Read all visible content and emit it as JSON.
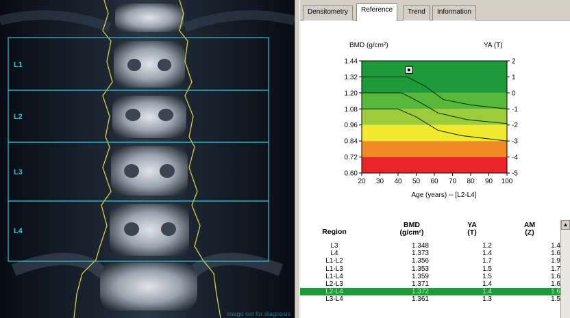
{
  "scan": {
    "regions": [
      "L1",
      "L2",
      "L3",
      "L4"
    ],
    "footer": "Image not for diagnosis"
  },
  "tabs": [
    "Densitometry",
    "Reference",
    "Trend",
    "Information"
  ],
  "active_tab": "Reference",
  "chart_data": {
    "type": "area",
    "title": "",
    "y_left_label": "BMD (g/cm²)",
    "y_right_label": "YA (T)",
    "xlabel": "Age (years) -- [L2-L4]",
    "x_ticks": [
      20,
      30,
      40,
      50,
      60,
      70,
      80,
      90,
      100
    ],
    "y_left_ticks": [
      "1.44",
      "1.32",
      "1.20",
      "1.08",
      "0.96",
      "0.84",
      "0.72",
      "0.60"
    ],
    "y_right_ticks": [
      "2",
      "1",
      "0",
      "-1",
      "-2",
      "-3",
      "-4",
      "-5"
    ],
    "xlim": [
      20,
      100
    ],
    "ylim": [
      0.6,
      1.44
    ],
    "bands": [
      {
        "from": 0.6,
        "to": 0.72,
        "color": "#e8262a"
      },
      {
        "from": 0.72,
        "to": 0.84,
        "color": "#f28a23"
      },
      {
        "from": 0.84,
        "to": 0.96,
        "color": "#f2e92e"
      },
      {
        "from": 0.96,
        "to": 1.08,
        "color": "#9ccc3c"
      },
      {
        "from": 1.08,
        "to": 1.2,
        "color": "#58b83a"
      },
      {
        "from": 1.2,
        "to": 1.44,
        "color": "#1e9a3a"
      }
    ],
    "curves": [
      {
        "x": [
          20,
          45,
          55,
          65,
          80,
          100
        ],
        "y": [
          1.32,
          1.32,
          1.25,
          1.15,
          1.11,
          1.08
        ]
      },
      {
        "x": [
          20,
          42,
          52,
          62,
          78,
          100
        ],
        "y": [
          1.2,
          1.2,
          1.13,
          1.05,
          1.0,
          0.97
        ]
      },
      {
        "x": [
          20,
          40,
          50,
          62,
          75,
          100
        ],
        "y": [
          1.08,
          1.08,
          1.02,
          0.92,
          0.88,
          0.84
        ]
      }
    ],
    "point": {
      "x": 46,
      "y": 1.372
    }
  },
  "table": {
    "headers": {
      "region": "Region",
      "bmd": [
        "BMD",
        "(g/cm²)"
      ],
      "ya": [
        "YA",
        "(T)"
      ],
      "am": [
        "AM",
        "(Z)"
      ]
    },
    "rows": [
      {
        "region": "L3",
        "bmd": "1.348",
        "ya": "1.2",
        "am": "1.4"
      },
      {
        "region": "L4",
        "bmd": "1.373",
        "ya": "1.4",
        "am": "1.6"
      },
      {
        "region": "L1-L2",
        "bmd": "1.356",
        "ya": "1.7",
        "am": "1.9"
      },
      {
        "region": "L1-L3",
        "bmd": "1.353",
        "ya": "1.5",
        "am": "1.7"
      },
      {
        "region": "L1-L4",
        "bmd": "1.359",
        "ya": "1.5",
        "am": "1.6"
      },
      {
        "region": "L2-L3",
        "bmd": "1.371",
        "ya": "1.4",
        "am": "1.6"
      },
      {
        "region": "L2-L4",
        "bmd": "1.372",
        "ya": "1.4",
        "am": "1.6",
        "selected": true
      },
      {
        "region": "L3-L4",
        "bmd": "1.361",
        "ya": "1.3",
        "am": "1.5"
      }
    ]
  },
  "colors": {
    "roi_box": "#2fc4d4",
    "bone_outline": "#d8d23a",
    "selected_row": "#1e9a3a"
  }
}
